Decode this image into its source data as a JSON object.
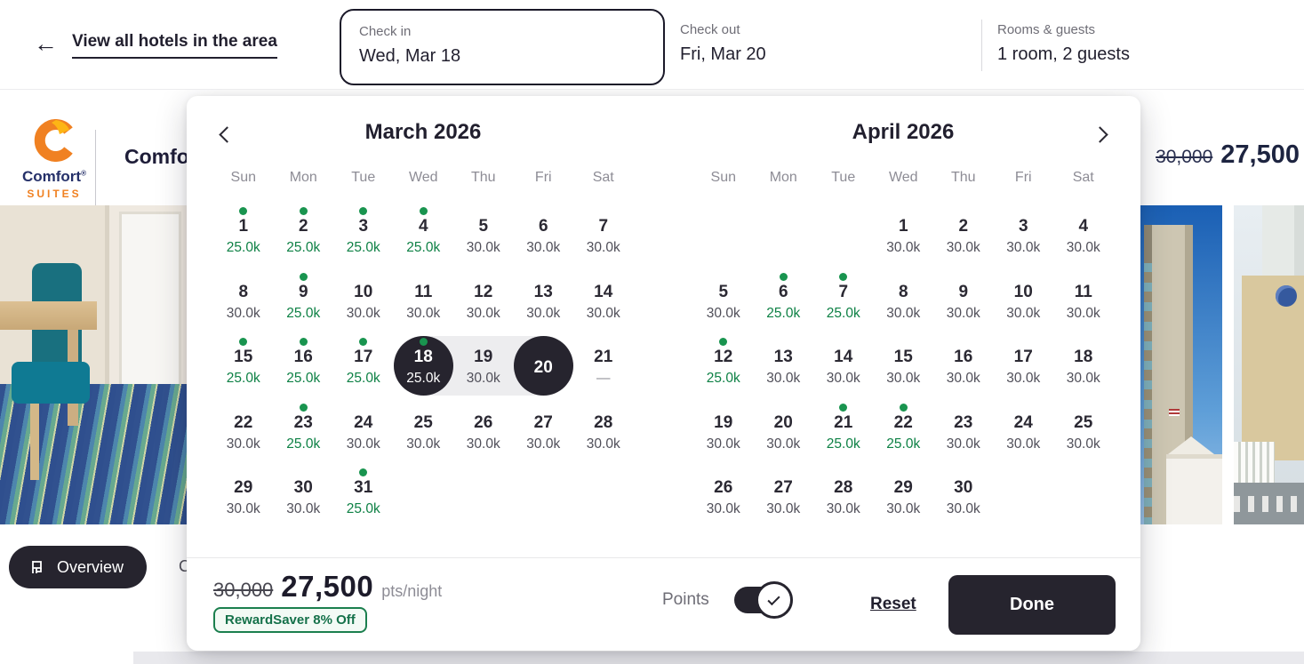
{
  "topbar": {
    "back_label": "View all hotels in the area",
    "checkin": {
      "label": "Check in",
      "value": "Wed, Mar 18"
    },
    "checkout": {
      "label": "Check out",
      "value": "Fri, Mar 20"
    },
    "rooms_guests": {
      "label": "Rooms & guests",
      "value": "1 room, 2 guests"
    }
  },
  "hotel": {
    "brand_name": "Comfort",
    "brand_mark": "®",
    "brand_sub": "SUITES",
    "name_visible": "Comfor",
    "price_old": "30,000",
    "price_new": "27,500",
    "overview_tab": "Overview",
    "partial_tab_text": "C"
  },
  "icons": {
    "back_arrow": "←"
  },
  "calendar": {
    "weekdays": [
      "Sun",
      "Mon",
      "Tue",
      "Wed",
      "Thu",
      "Fri",
      "Sat"
    ],
    "months": [
      {
        "title": "March 2026",
        "weeks": [
          [
            {
              "d": "1",
              "p": "25.0k",
              "deal": true,
              "dot": true
            },
            {
              "d": "2",
              "p": "25.0k",
              "deal": true,
              "dot": true
            },
            {
              "d": "3",
              "p": "25.0k",
              "deal": true,
              "dot": true
            },
            {
              "d": "4",
              "p": "25.0k",
              "deal": true,
              "dot": true
            },
            {
              "d": "5",
              "p": "30.0k"
            },
            {
              "d": "6",
              "p": "30.0k"
            },
            {
              "d": "7",
              "p": "30.0k"
            }
          ],
          [
            {
              "d": "8",
              "p": "30.0k"
            },
            {
              "d": "9",
              "p": "25.0k",
              "deal": true,
              "dot": true
            },
            {
              "d": "10",
              "p": "30.0k"
            },
            {
              "d": "11",
              "p": "30.0k"
            },
            {
              "d": "12",
              "p": "30.0k"
            },
            {
              "d": "13",
              "p": "30.0k"
            },
            {
              "d": "14",
              "p": "30.0k"
            }
          ],
          [
            {
              "d": "15",
              "p": "25.0k",
              "deal": true,
              "dot": true
            },
            {
              "d": "16",
              "p": "25.0k",
              "deal": true,
              "dot": true
            },
            {
              "d": "17",
              "p": "25.0k",
              "deal": true,
              "dot": true
            },
            {
              "d": "18",
              "p": "25.0k",
              "deal": true,
              "dot": true,
              "sel": true,
              "range": "start"
            },
            {
              "d": "19",
              "p": "30.0k",
              "range": "in"
            },
            {
              "d": "20",
              "sel": true,
              "range": "end"
            },
            {
              "d": "21",
              "p": "—",
              "dash": true
            }
          ],
          [
            {
              "d": "22",
              "p": "30.0k"
            },
            {
              "d": "23",
              "p": "25.0k",
              "deal": true,
              "dot": true
            },
            {
              "d": "24",
              "p": "30.0k"
            },
            {
              "d": "25",
              "p": "30.0k"
            },
            {
              "d": "26",
              "p": "30.0k"
            },
            {
              "d": "27",
              "p": "30.0k"
            },
            {
              "d": "28",
              "p": "30.0k"
            }
          ],
          [
            {
              "d": "29",
              "p": "30.0k"
            },
            {
              "d": "30",
              "p": "30.0k"
            },
            {
              "d": "31",
              "p": "25.0k",
              "deal": true,
              "dot": true
            },
            null,
            null,
            null,
            null
          ]
        ]
      },
      {
        "title": "April 2026",
        "weeks": [
          [
            null,
            null,
            null,
            {
              "d": "1",
              "p": "30.0k"
            },
            {
              "d": "2",
              "p": "30.0k"
            },
            {
              "d": "3",
              "p": "30.0k"
            },
            {
              "d": "4",
              "p": "30.0k"
            }
          ],
          [
            {
              "d": "5",
              "p": "30.0k"
            },
            {
              "d": "6",
              "p": "25.0k",
              "deal": true,
              "dot": true
            },
            {
              "d": "7",
              "p": "25.0k",
              "deal": true,
              "dot": true
            },
            {
              "d": "8",
              "p": "30.0k"
            },
            {
              "d": "9",
              "p": "30.0k"
            },
            {
              "d": "10",
              "p": "30.0k"
            },
            {
              "d": "11",
              "p": "30.0k"
            }
          ],
          [
            {
              "d": "12",
              "p": "25.0k",
              "deal": true,
              "dot": true
            },
            {
              "d": "13",
              "p": "30.0k"
            },
            {
              "d": "14",
              "p": "30.0k"
            },
            {
              "d": "15",
              "p": "30.0k"
            },
            {
              "d": "16",
              "p": "30.0k"
            },
            {
              "d": "17",
              "p": "30.0k"
            },
            {
              "d": "18",
              "p": "30.0k"
            }
          ],
          [
            {
              "d": "19",
              "p": "30.0k"
            },
            {
              "d": "20",
              "p": "30.0k"
            },
            {
              "d": "21",
              "p": "25.0k",
              "deal": true,
              "dot": true
            },
            {
              "d": "22",
              "p": "25.0k",
              "deal": true,
              "dot": true
            },
            {
              "d": "23",
              "p": "30.0k"
            },
            {
              "d": "24",
              "p": "30.0k"
            },
            {
              "d": "25",
              "p": "30.0k"
            }
          ],
          [
            {
              "d": "26",
              "p": "30.0k"
            },
            {
              "d": "27",
              "p": "30.0k"
            },
            {
              "d": "28",
              "p": "30.0k"
            },
            {
              "d": "29",
              "p": "30.0k"
            },
            {
              "d": "30",
              "p": "30.0k"
            },
            null,
            null
          ]
        ]
      }
    ],
    "footer": {
      "price_old": "30,000",
      "price_new": "27,500",
      "price_unit": "pts/night",
      "badge": "RewardSaver 8% Off",
      "points_label": "Points",
      "points_on": true,
      "reset_label": "Reset",
      "done_label": "Done"
    }
  },
  "colors": {
    "dark": "#26242e",
    "ink": "#211f2e",
    "green": "#0e8145",
    "badge": "#1b7f4e",
    "range": "#ededef",
    "orange": "#f08122",
    "navy": "#253069"
  }
}
